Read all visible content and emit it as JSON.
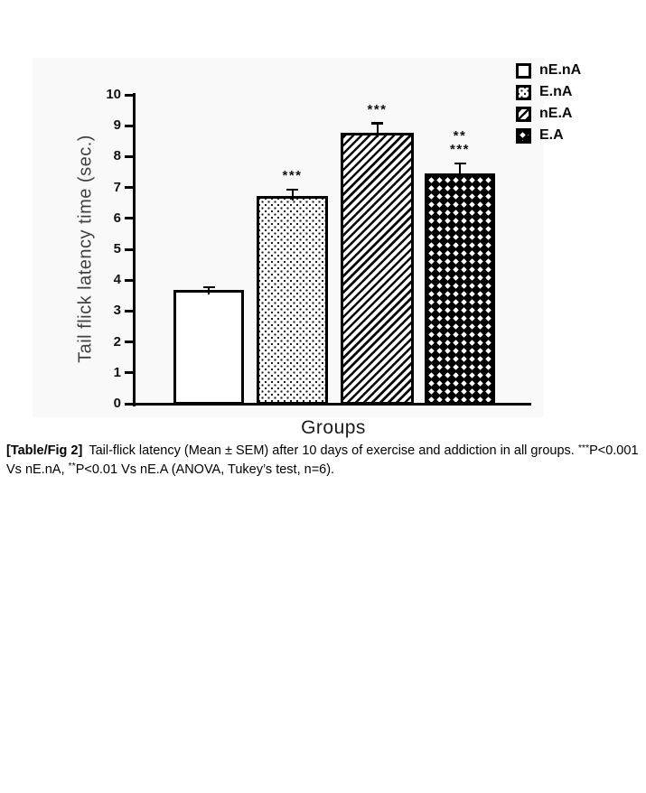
{
  "figure": {
    "caption": {
      "tag": "[Table/Fig 2]",
      "text_1": "Tail-flick latency (Mean ± SEM) after 10 days of exercise and addiction in all groups. ",
      "sig_1": "***",
      "text_2": "P<0.001 Vs nE.nA, ",
      "sig_2": "**",
      "text_3": "P<0.01 Vs nE.A (ANOVA, Tukey’s test, n=6)."
    }
  },
  "chart_data": {
    "type": "bar",
    "title": "",
    "xlabel": "Groups",
    "ylabel": "Tail flick latency time (sec.)",
    "ylim": [
      0,
      10
    ],
    "ytick_interval": 1,
    "yticks": [
      0,
      1,
      2,
      3,
      4,
      5,
      6,
      7,
      8,
      9,
      10
    ],
    "grid": false,
    "categories": [
      "nE.nA",
      "E.nA",
      "nE.A",
      "E.A"
    ],
    "values": [
      3.7,
      6.75,
      8.8,
      7.5
    ],
    "sem": [
      0.1,
      0.2,
      0.3,
      0.3
    ],
    "error_bars": "upper SEM only",
    "significance": [
      [],
      [
        "***"
      ],
      [
        "***"
      ],
      [
        "**",
        "***"
      ]
    ],
    "patterns": [
      "solid-white",
      "stipple-dots",
      "diagonal-hatch",
      "black-diamonds"
    ],
    "bar_fill_color": "#ffffff",
    "bar_border_color": "#000000",
    "legend": {
      "position": "top-right",
      "entries": [
        "nE.nA",
        "E.nA",
        "nE.A",
        "E.A"
      ]
    }
  }
}
